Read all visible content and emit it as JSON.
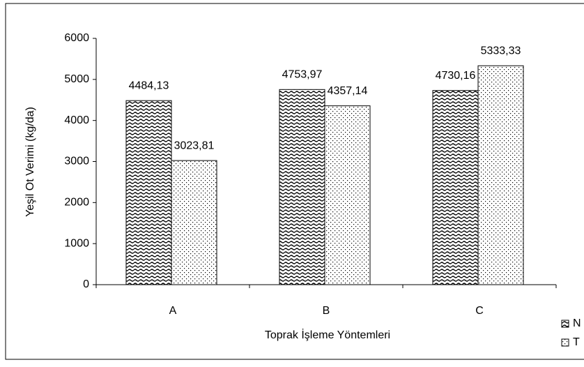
{
  "chart_data": {
    "type": "bar",
    "x_label": "Toprak İşleme Yöntemleri",
    "y_label": "Yeşil Ot Verimi (kg/da)",
    "categories": [
      "A",
      "B",
      "C"
    ],
    "series": [
      {
        "name": "N",
        "color": "#000000",
        "values": [
          4484.13,
          4753.97,
          4730.16
        ],
        "value_labels": [
          "4484,13",
          "4753,97",
          "4730,16"
        ]
      },
      {
        "name": "T",
        "color": "#000000",
        "values": [
          3023.81,
          4357.14,
          5333.33
        ],
        "value_labels": [
          "3023,81",
          "4357,14",
          "5333,33"
        ]
      }
    ],
    "ylim": [
      0,
      6000
    ],
    "yticks": [
      0,
      1000,
      2000,
      3000,
      4000,
      5000,
      6000
    ],
    "legend": "right"
  }
}
